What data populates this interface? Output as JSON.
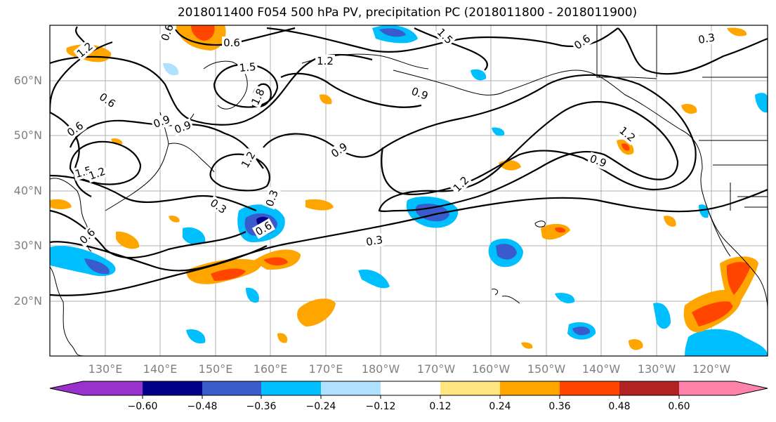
{
  "title": "2018011400 F054 500 hPa PV, precipitation PC (2018011800 - 2018011900)",
  "map": {
    "lat_labels": [
      "20°N",
      "30°N",
      "40°N",
      "50°N",
      "60°N"
    ],
    "lon_labels": [
      "130°E",
      "140°E",
      "150°E",
      "160°E",
      "170°E",
      "180°W",
      "170°W",
      "160°W",
      "150°W",
      "140°W",
      "130°W",
      "120°W"
    ],
    "contour_labels": [
      "1.2",
      "0.6",
      "1.5",
      "1.2",
      "1.5",
      "0.3",
      "0.6",
      "0.6",
      "1.8",
      "0.9",
      "0.9",
      "0.6",
      "1.2",
      "1.2",
      "1.2",
      "0.9",
      "1.2",
      "0.9",
      "0.3",
      "0.6",
      "0.3",
      "0.6",
      "0.3",
      "0.9",
      "0.6",
      "1.5"
    ]
  },
  "colorbar": {
    "colors": [
      "#9932cc",
      "#00008b",
      "#3a5bcc",
      "#00bfff",
      "#b0e2ff",
      "#ffffff",
      "#ffe680",
      "#ffa500",
      "#ff4500",
      "#b22222",
      "#ff82ab"
    ],
    "tick_labels": [
      "−0.60",
      "−0.48",
      "−0.36",
      "−0.24",
      "−0.12",
      "0.12",
      "0.24",
      "0.36",
      "0.48",
      "0.60"
    ]
  }
}
